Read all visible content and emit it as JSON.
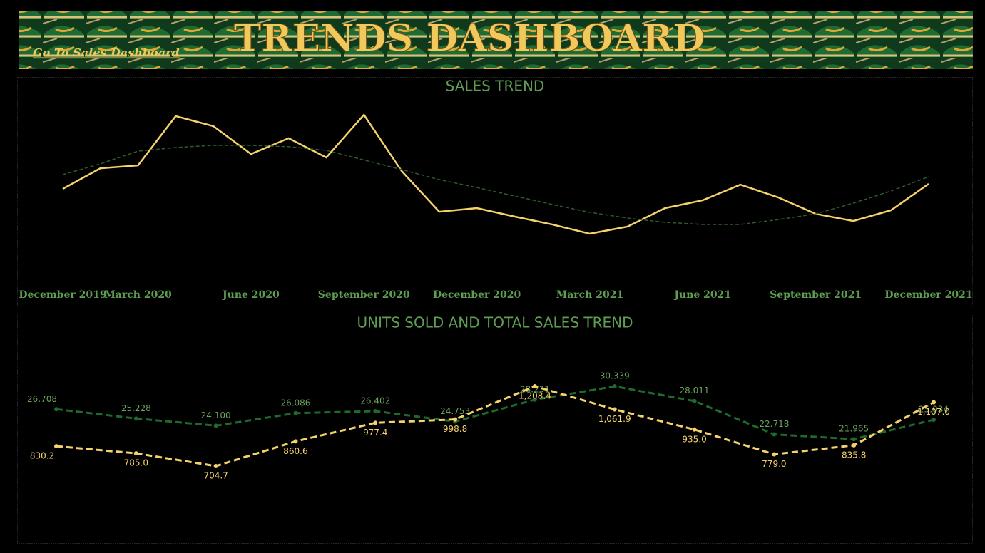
{
  "header": {
    "title": "TRENDS DASHBOARD",
    "link": "Go To Sales Dashboard"
  },
  "chart_data": [
    {
      "type": "line",
      "title": "SALES TREND",
      "categories": [
        "December 2019",
        null,
        "March 2020",
        null,
        null,
        "June 2020",
        null,
        null,
        "September 2020",
        null,
        null,
        "December 2020",
        null,
        null,
        "March 2021",
        null,
        null,
        "June 2021",
        null,
        null,
        "September 2021",
        null,
        null,
        "December 2021"
      ],
      "series": [
        {
          "color": "#f5d26b",
          "values": [
            50,
            60.7,
            62.2,
            87.8,
            82.6,
            68.1,
            76.3,
            66.3,
            88.5,
            59.3,
            38.1,
            40,
            35.6,
            31.5,
            26.7,
            30.4,
            40,
            44.1,
            52.2,
            45.6,
            37,
            33.3,
            38.9,
            52.6
          ]
        },
        {
          "color": "#2f5a2c",
          "dashed": true,
          "values": [
            57.4,
            63,
            69.6,
            71.5,
            72.6,
            72.6,
            71.9,
            70,
            65,
            60,
            54.8,
            50.7,
            46.3,
            41.9,
            37.8,
            34.8,
            32.6,
            31.5,
            31.5,
            34,
            37,
            42.6,
            48.9,
            56.3
          ]
        }
      ],
      "ylim": [
        0,
        100
      ]
    },
    {
      "type": "line",
      "title": "UNITS SOLD AND TOTAL SALES TREND",
      "series": [
        {
          "color": "#1e6b2e",
          "label_color": "#6aa35a",
          "dashed": true,
          "values": [
            26.708,
            25.228,
            24.1,
            26.086,
            26.402,
            24.753,
            28.231,
            30.339,
            28.011,
            22.718,
            21.965,
            25.034
          ],
          "value_labels": [
            "26.708",
            "25.228",
            "24.100",
            "26.086",
            "26.402",
            "24.753",
            "28.231",
            "30.339",
            "28.011",
            "22.718",
            "21.965",
            "25.034"
          ]
        },
        {
          "color": "#f5d26b",
          "label_color": "#f5d26b",
          "dashed": true,
          "axis": "y2",
          "values": [
            830.2,
            785.0,
            704.7,
            860.6,
            977.4,
            998.8,
            1208.4,
            1061.9,
            935.0,
            779.0,
            835.8,
            1107.0
          ],
          "value_labels": [
            "830.2",
            "785.0",
            "704.7",
            "860.6",
            "977.4",
            "998.8",
            "1,208.4",
            "1,061.9",
            "935.0",
            "779.0",
            "835.8",
            "1,107.0"
          ]
        }
      ],
      "ylim": [
        5.7,
        38.5
      ],
      "y2lim": [
        228,
        1532
      ]
    }
  ]
}
